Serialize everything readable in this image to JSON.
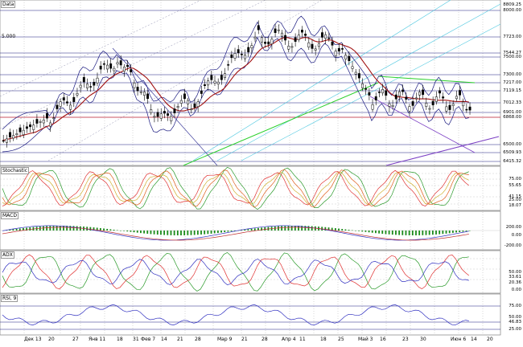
{
  "panes": {
    "price": {
      "label": "Data",
      "level_label": "5.000"
    },
    "stochastic": {
      "label": "Stochastic"
    },
    "macd": {
      "label": "MACD"
    },
    "adx": {
      "label": "ADX"
    },
    "rsi": {
      "label": "RSI, 9"
    }
  },
  "price_scale": [
    {
      "text": "8809.25",
      "bg": "#ffffff",
      "fg": "#000000"
    },
    {
      "text": "8000.00",
      "bg": "#ffffff",
      "fg": "#000000"
    },
    {
      "text": "7723.00",
      "bg": "#ffffff",
      "fg": "#000000"
    },
    {
      "text": "7544.27",
      "bg": "#ffffff",
      "fg": "#000000"
    },
    {
      "text": "7500.00",
      "bg": "#ffffff",
      "fg": "#000000"
    },
    {
      "text": "7300.00",
      "bg": "#ffffff",
      "fg": "#000000"
    },
    {
      "text": "7217.00",
      "bg": "#ffffff",
      "fg": "#000000"
    },
    {
      "text": "7119.15",
      "bg": "#ffffff",
      "fg": "#000000"
    },
    {
      "text": "7012.33",
      "bg": "#ffffff",
      "fg": "#000000"
    },
    {
      "text": "6901.00",
      "bg": "#ffffff",
      "fg": "#000000"
    },
    {
      "text": "6868.00",
      "bg": "#ffffff",
      "fg": "#000000"
    },
    {
      "text": "6500.00",
      "bg": "#ffffff",
      "fg": "#000000"
    },
    {
      "text": "6509.93",
      "bg": "#ffffff",
      "fg": "#000000"
    },
    {
      "text": "6415.32",
      "bg": "#ffffff",
      "fg": "#000000"
    }
  ],
  "stoch_scale": [
    {
      "text": "75.00",
      "bg": "#ffffff",
      "fg": "#000000"
    },
    {
      "text": "55.65",
      "bg": "#ffffff",
      "fg": "#000000"
    },
    {
      "text": "41.15",
      "bg": "#ffffff",
      "fg": "#000000"
    },
    {
      "text": "25.00",
      "bg": "#ffffff",
      "fg": "#000000"
    },
    {
      "text": "18.07",
      "bg": "#ffffff",
      "fg": "#000000"
    }
  ],
  "macd_scale": [
    {
      "text": "200.00",
      "bg": "#ffffff",
      "fg": "#000000"
    },
    {
      "text": "0.00",
      "bg": "#ffffff",
      "fg": "#000000"
    },
    {
      "text": "-200.00",
      "bg": "#ffffff",
      "fg": "#000000"
    }
  ],
  "adx_scale": [
    {
      "text": "50.00",
      "bg": "#ffffff",
      "fg": "#000000"
    },
    {
      "text": "33.61",
      "bg": "#ffffff",
      "fg": "#000000"
    },
    {
      "text": "20.36",
      "bg": "#ffffff",
      "fg": "#000000"
    },
    {
      "text": "0.00",
      "bg": "#ffffff",
      "fg": "#000000"
    }
  ],
  "rsi_scale": [
    {
      "text": "75.00",
      "bg": "#ffffff",
      "fg": "#000000"
    },
    {
      "text": "50.00",
      "bg": "#ffffff",
      "fg": "#000000"
    },
    {
      "text": "46.83",
      "bg": "#ffffff",
      "fg": "#000000"
    },
    {
      "text": "25.00",
      "bg": "#ffffff",
      "fg": "#000000"
    }
  ],
  "dates": [
    "Дек 13",
    "20",
    "27",
    "Янв 11",
    "18",
    "31",
    "Фев 7",
    "14",
    "21",
    "28",
    "Мар 9",
    "21",
    "28",
    "Апр 4",
    "11",
    "18",
    "25",
    "Май 3",
    "16",
    "23",
    "30",
    "Июн 6",
    "14",
    "20"
  ],
  "corner": "",
  "colors": {
    "up_candle": "#ffffff",
    "down_candle": "#000000",
    "bollinger": "#1a1a80",
    "ma": "#a01010",
    "hline": "#1a1a80",
    "red_line": "#e04040",
    "green_line": "#2bd02b",
    "purple_line": "#7b3fc4",
    "cyan_line": "#4ec8e0",
    "macd_hist": "#1a8a1a"
  }
}
